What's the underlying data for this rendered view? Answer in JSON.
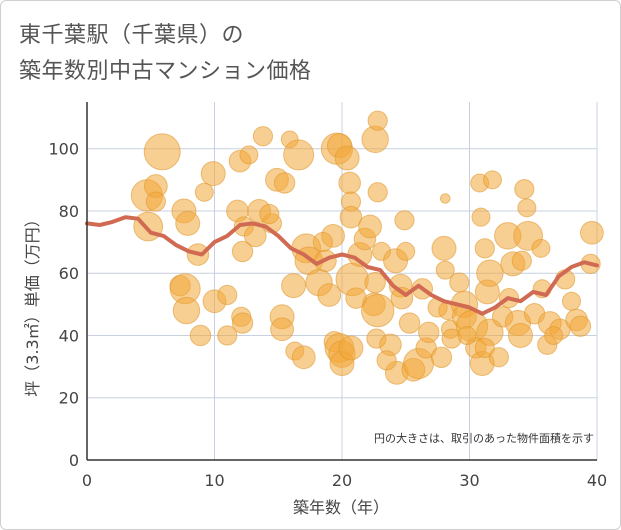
{
  "title": {
    "line1": "東千葉駅（千葉県）の",
    "line2": "築年数別中古マンション価格"
  },
  "colors": {
    "bubble": "#f3a838",
    "bubble_stroke": "#e09a32",
    "line": "#d06a52",
    "grid": "#c8d0e0",
    "axis": "#333333"
  },
  "chart_data": {
    "type": "scatter",
    "title": "東千葉駅（千葉県）の築年数別中古マンション価格",
    "xlabel": "築年数（年）",
    "ylabel": "坪（3.3㎡）単価（万円）",
    "xlim": [
      0,
      40
    ],
    "ylim": [
      0,
      115
    ],
    "xticks": [
      0,
      10,
      20,
      30,
      40
    ],
    "yticks": [
      0,
      20,
      40,
      60,
      80,
      100
    ],
    "grid": true,
    "note": "円の大きさは、取引のあった物件面積を示す",
    "trend": {
      "x": [
        0,
        1,
        2,
        3,
        4,
        5,
        6,
        7,
        8,
        9,
        10,
        11,
        12,
        13,
        14,
        15,
        16,
        17,
        18,
        19,
        20,
        21,
        22,
        23,
        24,
        25,
        26,
        27,
        28,
        29,
        30,
        31,
        32,
        33,
        34,
        35,
        36,
        37,
        38,
        39,
        40
      ],
      "y": [
        76,
        75.5,
        76.5,
        78,
        77.5,
        73,
        72,
        69,
        67,
        66,
        70,
        72,
        75.5,
        76,
        75,
        72,
        68,
        66,
        63,
        65,
        66,
        65,
        62,
        61,
        56,
        53,
        56,
        53,
        51,
        50,
        49,
        47,
        49,
        52,
        51,
        54,
        53,
        59,
        62,
        63.5,
        62.5
      ]
    },
    "points": [
      {
        "x": 4.7,
        "y": 85,
        "s": 2.6
      },
      {
        "x": 5.4,
        "y": 88,
        "s": 1.9
      },
      {
        "x": 5.4,
        "y": 83,
        "s": 1.6
      },
      {
        "x": 4.8,
        "y": 75,
        "s": 2.4
      },
      {
        "x": 5.9,
        "y": 99,
        "s": 3.0
      },
      {
        "x": 7.6,
        "y": 80,
        "s": 2.0
      },
      {
        "x": 7.9,
        "y": 76,
        "s": 2.0
      },
      {
        "x": 8.7,
        "y": 66,
        "s": 1.8
      },
      {
        "x": 7.3,
        "y": 56,
        "s": 1.7
      },
      {
        "x": 7.7,
        "y": 55,
        "s": 2.5
      },
      {
        "x": 7.8,
        "y": 48,
        "s": 2.2
      },
      {
        "x": 8.9,
        "y": 40,
        "s": 1.7
      },
      {
        "x": 9.9,
        "y": 92,
        "s": 2.0
      },
      {
        "x": 9.2,
        "y": 86,
        "s": 1.5
      },
      {
        "x": 10,
        "y": 51,
        "s": 1.9
      },
      {
        "x": 11,
        "y": 53,
        "s": 1.6
      },
      {
        "x": 11.8,
        "y": 80,
        "s": 1.8
      },
      {
        "x": 12,
        "y": 96,
        "s": 1.8
      },
      {
        "x": 12.3,
        "y": 75,
        "s": 1.6
      },
      {
        "x": 12.2,
        "y": 67,
        "s": 1.7
      },
      {
        "x": 12.1,
        "y": 46,
        "s": 1.6
      },
      {
        "x": 12.2,
        "y": 44,
        "s": 1.7
      },
      {
        "x": 11,
        "y": 40,
        "s": 1.6
      },
      {
        "x": 12.7,
        "y": 98,
        "s": 1.5
      },
      {
        "x": 13.8,
        "y": 104,
        "s": 1.6
      },
      {
        "x": 13.5,
        "y": 80,
        "s": 1.9
      },
      {
        "x": 14.9,
        "y": 90,
        "s": 1.9
      },
      {
        "x": 15.5,
        "y": 89,
        "s": 1.7
      },
      {
        "x": 15.9,
        "y": 103,
        "s": 1.4
      },
      {
        "x": 16.6,
        "y": 98,
        "s": 2.5
      },
      {
        "x": 14.5,
        "y": 76,
        "s": 1.6
      },
      {
        "x": 15.3,
        "y": 46,
        "s": 2.0
      },
      {
        "x": 15.3,
        "y": 42,
        "s": 1.9
      },
      {
        "x": 16.2,
        "y": 56,
        "s": 2.0
      },
      {
        "x": 16.3,
        "y": 35,
        "s": 1.5
      },
      {
        "x": 17,
        "y": 33,
        "s": 1.9
      },
      {
        "x": 17.2,
        "y": 68,
        "s": 2.4
      },
      {
        "x": 17.4,
        "y": 64,
        "s": 2.3
      },
      {
        "x": 18.2,
        "y": 57,
        "s": 2.2
      },
      {
        "x": 18.7,
        "y": 64,
        "s": 1.8
      },
      {
        "x": 19.3,
        "y": 72,
        "s": 1.9
      },
      {
        "x": 19.6,
        "y": 100,
        "s": 2.6
      },
      {
        "x": 19.8,
        "y": 101,
        "s": 2.0
      },
      {
        "x": 20.4,
        "y": 97,
        "s": 2.0
      },
      {
        "x": 20.6,
        "y": 89,
        "s": 1.8
      },
      {
        "x": 20.7,
        "y": 83,
        "s": 1.6
      },
      {
        "x": 20.7,
        "y": 78,
        "s": 1.8
      },
      {
        "x": 19,
        "y": 53,
        "s": 1.9
      },
      {
        "x": 19.4,
        "y": 38,
        "s": 1.7
      },
      {
        "x": 19.8,
        "y": 36,
        "s": 2.4
      },
      {
        "x": 20,
        "y": 34,
        "s": 2.2
      },
      {
        "x": 20,
        "y": 31,
        "s": 2.0
      },
      {
        "x": 20.7,
        "y": 36,
        "s": 2.0
      },
      {
        "x": 20.8,
        "y": 58,
        "s": 2.7
      },
      {
        "x": 21.4,
        "y": 66,
        "s": 2.0
      },
      {
        "x": 21.8,
        "y": 71,
        "s": 1.8
      },
      {
        "x": 22.2,
        "y": 75,
        "s": 1.9
      },
      {
        "x": 22.6,
        "y": 103,
        "s": 2.2
      },
      {
        "x": 22.8,
        "y": 109,
        "s": 1.6
      },
      {
        "x": 22.8,
        "y": 86,
        "s": 1.6
      },
      {
        "x": 23.1,
        "y": 67,
        "s": 1.5
      },
      {
        "x": 22.6,
        "y": 57,
        "s": 1.7
      },
      {
        "x": 22.5,
        "y": 50,
        "s": 1.9
      },
      {
        "x": 22.8,
        "y": 48,
        "s": 2.7
      },
      {
        "x": 22.7,
        "y": 39,
        "s": 1.6
      },
      {
        "x": 23.8,
        "y": 37,
        "s": 1.8
      },
      {
        "x": 24.2,
        "y": 64,
        "s": 2.0
      },
      {
        "x": 24.9,
        "y": 77,
        "s": 1.6
      },
      {
        "x": 25,
        "y": 67,
        "s": 1.5
      },
      {
        "x": 24.6,
        "y": 56,
        "s": 1.9
      },
      {
        "x": 24.7,
        "y": 52,
        "s": 1.8
      },
      {
        "x": 25.3,
        "y": 44,
        "s": 1.7
      },
      {
        "x": 24.3,
        "y": 28,
        "s": 1.9
      },
      {
        "x": 25.6,
        "y": 29,
        "s": 1.9
      },
      {
        "x": 26,
        "y": 31,
        "s": 2.5
      },
      {
        "x": 26.3,
        "y": 55,
        "s": 1.7
      },
      {
        "x": 26.6,
        "y": 36,
        "s": 1.7
      },
      {
        "x": 27.5,
        "y": 49,
        "s": 1.6
      },
      {
        "x": 27.8,
        "y": 33,
        "s": 1.7
      },
      {
        "x": 28,
        "y": 68,
        "s": 2.0
      },
      {
        "x": 28.1,
        "y": 84,
        "s": 0.8
      },
      {
        "x": 28.1,
        "y": 61,
        "s": 1.5
      },
      {
        "x": 28.3,
        "y": 48,
        "s": 1.5
      },
      {
        "x": 28.5,
        "y": 42,
        "s": 1.5
      },
      {
        "x": 28.6,
        "y": 39,
        "s": 1.6
      },
      {
        "x": 29.2,
        "y": 57,
        "s": 1.6
      },
      {
        "x": 29.6,
        "y": 50,
        "s": 2.2
      },
      {
        "x": 29.6,
        "y": 46,
        "s": 2.0
      },
      {
        "x": 30.2,
        "y": 43,
        "s": 2.6
      },
      {
        "x": 30.5,
        "y": 36,
        "s": 1.7
      },
      {
        "x": 30.8,
        "y": 89,
        "s": 1.5
      },
      {
        "x": 30.9,
        "y": 78,
        "s": 1.5
      },
      {
        "x": 31.2,
        "y": 68,
        "s": 1.6
      },
      {
        "x": 31.4,
        "y": 54,
        "s": 2.0
      },
      {
        "x": 31.6,
        "y": 60,
        "s": 2.2
      },
      {
        "x": 31.6,
        "y": 41,
        "s": 2.2
      },
      {
        "x": 31,
        "y": 31,
        "s": 2.0
      },
      {
        "x": 31.2,
        "y": 36,
        "s": 1.6
      },
      {
        "x": 31.8,
        "y": 90,
        "s": 1.5
      },
      {
        "x": 32.3,
        "y": 33,
        "s": 1.6
      },
      {
        "x": 32.6,
        "y": 46,
        "s": 1.7
      },
      {
        "x": 33,
        "y": 72,
        "s": 2.2
      },
      {
        "x": 33.4,
        "y": 63,
        "s": 2.0
      },
      {
        "x": 33.8,
        "y": 44,
        "s": 2.1
      },
      {
        "x": 34,
        "y": 40,
        "s": 2.0
      },
      {
        "x": 34.1,
        "y": 64,
        "s": 1.6
      },
      {
        "x": 34.3,
        "y": 87,
        "s": 1.6
      },
      {
        "x": 34.5,
        "y": 81,
        "s": 1.5
      },
      {
        "x": 34.6,
        "y": 72,
        "s": 2.4
      },
      {
        "x": 35.1,
        "y": 47,
        "s": 1.7
      },
      {
        "x": 35.6,
        "y": 68,
        "s": 1.5
      },
      {
        "x": 35.7,
        "y": 55,
        "s": 1.5
      },
      {
        "x": 36.1,
        "y": 37,
        "s": 1.6
      },
      {
        "x": 36.3,
        "y": 44,
        "s": 1.9
      },
      {
        "x": 37.1,
        "y": 42,
        "s": 1.7
      },
      {
        "x": 37.5,
        "y": 58,
        "s": 1.6
      },
      {
        "x": 38,
        "y": 51,
        "s": 1.5
      },
      {
        "x": 38.4,
        "y": 45,
        "s": 1.8
      },
      {
        "x": 38.7,
        "y": 43,
        "s": 1.7
      },
      {
        "x": 39.6,
        "y": 73,
        "s": 1.9
      },
      {
        "x": 39.5,
        "y": 63,
        "s": 1.6
      },
      {
        "x": 13.2,
        "y": 72,
        "s": 1.8
      },
      {
        "x": 14.3,
        "y": 79,
        "s": 1.6
      },
      {
        "x": 18.5,
        "y": 70,
        "s": 1.6
      },
      {
        "x": 21.1,
        "y": 52,
        "s": 1.7
      },
      {
        "x": 23.5,
        "y": 32,
        "s": 1.6
      },
      {
        "x": 26.8,
        "y": 41,
        "s": 1.7
      },
      {
        "x": 29.8,
        "y": 40,
        "s": 1.5
      },
      {
        "x": 33.1,
        "y": 52,
        "s": 1.6
      },
      {
        "x": 36.6,
        "y": 40,
        "s": 1.5
      }
    ]
  }
}
